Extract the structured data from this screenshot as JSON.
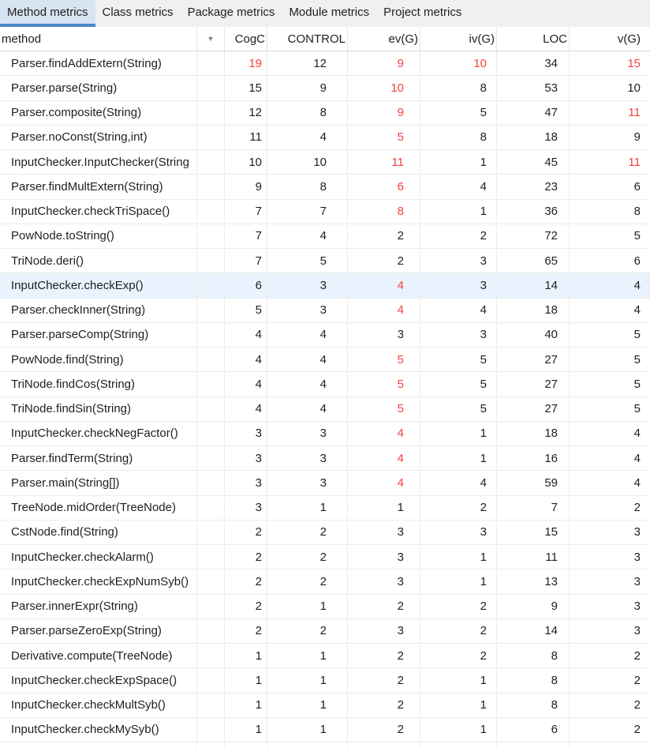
{
  "tabs": [
    {
      "label": "Method metrics",
      "selected": true
    },
    {
      "label": "Class metrics",
      "selected": false
    },
    {
      "label": "Package metrics",
      "selected": false
    },
    {
      "label": "Module metrics",
      "selected": false
    },
    {
      "label": "Project metrics",
      "selected": false
    }
  ],
  "table": {
    "sort_indicator": "▼",
    "columns": [
      {
        "label": "method"
      },
      {
        "label": ""
      },
      {
        "label": "CogC"
      },
      {
        "label": "CONTROL"
      },
      {
        "label": "ev(G)"
      },
      {
        "label": "iv(G)"
      },
      {
        "label": "LOC"
      },
      {
        "label": "v(G)"
      }
    ],
    "rows": [
      {
        "method": "Parser.findAddExtern(String)",
        "values": [
          19,
          12,
          9,
          10,
          34,
          15
        ],
        "red": [
          0,
          2,
          3,
          5
        ],
        "selected": false
      },
      {
        "method": "Parser.parse(String)",
        "values": [
          15,
          9,
          10,
          8,
          53,
          10
        ],
        "red": [
          2
        ],
        "selected": false
      },
      {
        "method": "Parser.composite(String)",
        "values": [
          12,
          8,
          9,
          5,
          47,
          11
        ],
        "red": [
          2,
          5
        ],
        "selected": false
      },
      {
        "method": "Parser.noConst(String,int)",
        "values": [
          11,
          4,
          5,
          8,
          18,
          9
        ],
        "red": [
          2
        ],
        "selected": false
      },
      {
        "method": "InputChecker.InputChecker(String",
        "values": [
          10,
          10,
          11,
          1,
          45,
          11
        ],
        "red": [
          2,
          5
        ],
        "selected": false
      },
      {
        "method": "Parser.findMultExtern(String)",
        "values": [
          9,
          8,
          6,
          4,
          23,
          6
        ],
        "red": [
          2
        ],
        "selected": false
      },
      {
        "method": "InputChecker.checkTriSpace()",
        "values": [
          7,
          7,
          8,
          1,
          36,
          8
        ],
        "red": [
          2
        ],
        "selected": false
      },
      {
        "method": "PowNode.toString()",
        "values": [
          7,
          4,
          2,
          2,
          72,
          5
        ],
        "red": [],
        "selected": false
      },
      {
        "method": "TriNode.deri()",
        "values": [
          7,
          5,
          2,
          3,
          65,
          6
        ],
        "red": [],
        "selected": false
      },
      {
        "method": "InputChecker.checkExp()",
        "values": [
          6,
          3,
          4,
          3,
          14,
          4
        ],
        "red": [
          2
        ],
        "selected": true
      },
      {
        "method": "Parser.checkInner(String)",
        "values": [
          5,
          3,
          4,
          4,
          18,
          4
        ],
        "red": [
          2
        ],
        "selected": false
      },
      {
        "method": "Parser.parseComp(String)",
        "values": [
          4,
          4,
          3,
          3,
          40,
          5
        ],
        "red": [],
        "selected": false
      },
      {
        "method": "PowNode.find(String)",
        "values": [
          4,
          4,
          5,
          5,
          27,
          5
        ],
        "red": [
          2
        ],
        "selected": false
      },
      {
        "method": "TriNode.findCos(String)",
        "values": [
          4,
          4,
          5,
          5,
          27,
          5
        ],
        "red": [
          2
        ],
        "selected": false
      },
      {
        "method": "TriNode.findSin(String)",
        "values": [
          4,
          4,
          5,
          5,
          27,
          5
        ],
        "red": [
          2
        ],
        "selected": false
      },
      {
        "method": "InputChecker.checkNegFactor()",
        "values": [
          3,
          3,
          4,
          1,
          18,
          4
        ],
        "red": [
          2
        ],
        "selected": false
      },
      {
        "method": "Parser.findTerm(String)",
        "values": [
          3,
          3,
          4,
          1,
          16,
          4
        ],
        "red": [
          2
        ],
        "selected": false
      },
      {
        "method": "Parser.main(String[])",
        "values": [
          3,
          3,
          4,
          4,
          59,
          4
        ],
        "red": [
          2
        ],
        "selected": false
      },
      {
        "method": "TreeNode.midOrder(TreeNode)",
        "values": [
          3,
          1,
          1,
          2,
          7,
          2
        ],
        "red": [],
        "selected": false
      },
      {
        "method": "CstNode.find(String)",
        "values": [
          2,
          2,
          3,
          3,
          15,
          3
        ],
        "red": [],
        "selected": false
      },
      {
        "method": "InputChecker.checkAlarm()",
        "values": [
          2,
          2,
          3,
          1,
          11,
          3
        ],
        "red": [],
        "selected": false
      },
      {
        "method": "InputChecker.checkExpNumSyb()",
        "values": [
          2,
          2,
          3,
          1,
          13,
          3
        ],
        "red": [],
        "selected": false
      },
      {
        "method": "Parser.innerExpr(String)",
        "values": [
          2,
          1,
          2,
          2,
          9,
          3
        ],
        "red": [],
        "selected": false
      },
      {
        "method": "Parser.parseZeroExp(String)",
        "values": [
          2,
          2,
          3,
          2,
          14,
          3
        ],
        "red": [],
        "selected": false
      },
      {
        "method": "Derivative.compute(TreeNode)",
        "values": [
          1,
          1,
          2,
          2,
          8,
          2
        ],
        "red": [],
        "selected": false
      },
      {
        "method": "InputChecker.checkExpSpace()",
        "values": [
          1,
          1,
          2,
          1,
          8,
          2
        ],
        "red": [],
        "selected": false
      },
      {
        "method": "InputChecker.checkMultSyb()",
        "values": [
          1,
          1,
          2,
          1,
          8,
          2
        ],
        "red": [],
        "selected": false
      },
      {
        "method": "InputChecker.checkMySyb()",
        "values": [
          1,
          1,
          2,
          1,
          6,
          2
        ],
        "red": [],
        "selected": false
      }
    ]
  },
  "colors": {
    "accent_blue": "#4a86c8",
    "selected_tab_bg": "#d7e4f2",
    "tab_strip_bg": "#f0f0f0",
    "red_value": "#f5413f",
    "selected_row_bg": "#e9f3fd",
    "text": "#1f1f1f",
    "gridline": "#ececec",
    "header_border": "#d8d8d8"
  }
}
